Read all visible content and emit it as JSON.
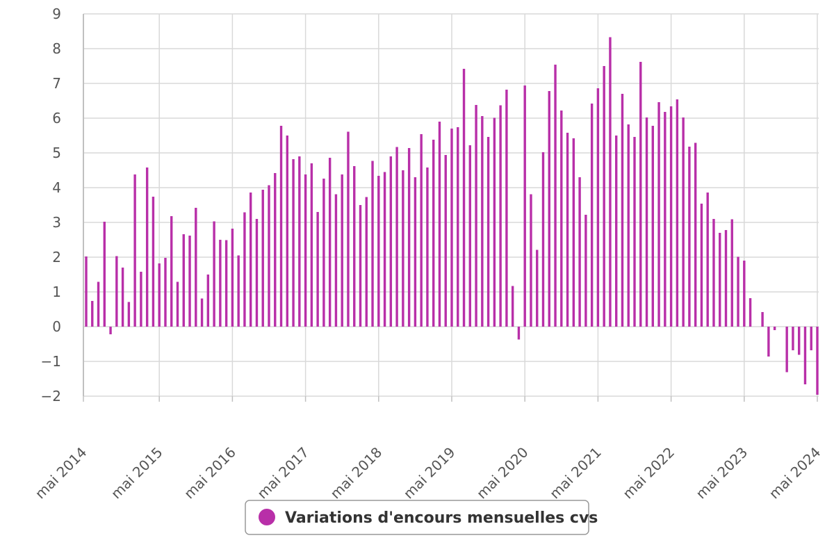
{
  "chart_data": {
    "type": "bar",
    "ylim": [
      -2,
      9
    ],
    "y_ticks": [
      9,
      8,
      7,
      6,
      5,
      4,
      3,
      2,
      1,
      0,
      -1,
      -2
    ],
    "x_tick_labels": [
      "mai 2014",
      "mai 2015",
      "mai 2016",
      "mai 2017",
      "mai 2018",
      "mai 2019",
      "mai 2020",
      "mai 2021",
      "mai 2022",
      "mai 2023",
      "mai 2024"
    ],
    "grid": true,
    "legend_position": "bottom-center",
    "colors": {
      "bar": "#b82fa8",
      "grid": "#d9d9d9",
      "axis": "#c0c0c0"
    },
    "series": [
      {
        "name": "Variations d'encours mensuelles cvs",
        "values": [
          2.02,
          0.74,
          1.29,
          3.02,
          -0.22,
          2.03,
          1.7,
          0.71,
          4.38,
          1.58,
          4.58,
          3.74,
          1.82,
          1.98,
          3.18,
          1.29,
          2.66,
          2.62,
          3.42,
          0.81,
          1.5,
          3.03,
          2.5,
          2.49,
          2.82,
          2.05,
          3.29,
          3.86,
          3.1,
          3.94,
          4.07,
          4.42,
          5.78,
          5.5,
          4.82,
          4.9,
          4.38,
          4.7,
          3.3,
          4.26,
          4.86,
          3.81,
          4.38,
          5.61,
          4.62,
          3.5,
          3.73,
          4.77,
          4.34,
          4.45,
          4.9,
          5.17,
          4.5,
          5.14,
          4.3,
          5.54,
          4.58,
          5.38,
          5.9,
          4.94,
          5.7,
          5.74,
          7.42,
          5.22,
          6.38,
          6.06,
          5.46,
          6.01,
          6.37,
          6.82,
          1.17,
          -0.37,
          6.94,
          3.81,
          2.21,
          5.02,
          6.78,
          7.54,
          6.22,
          5.58,
          5.42,
          4.3,
          3.22,
          6.42,
          6.86,
          7.5,
          8.33,
          5.5,
          6.7,
          5.82,
          5.46,
          7.62,
          6.02,
          5.78,
          6.46,
          6.18,
          6.34,
          6.54,
          6.02,
          5.18,
          5.29,
          3.54,
          3.86,
          3.1,
          2.7,
          2.78,
          3.09,
          2.01,
          1.9,
          0.82,
          0.0,
          0.42,
          -0.86,
          -0.1,
          0.0,
          -1.31,
          -0.68,
          -0.81,
          -1.66,
          -0.68,
          -1.96
        ]
      }
    ]
  }
}
